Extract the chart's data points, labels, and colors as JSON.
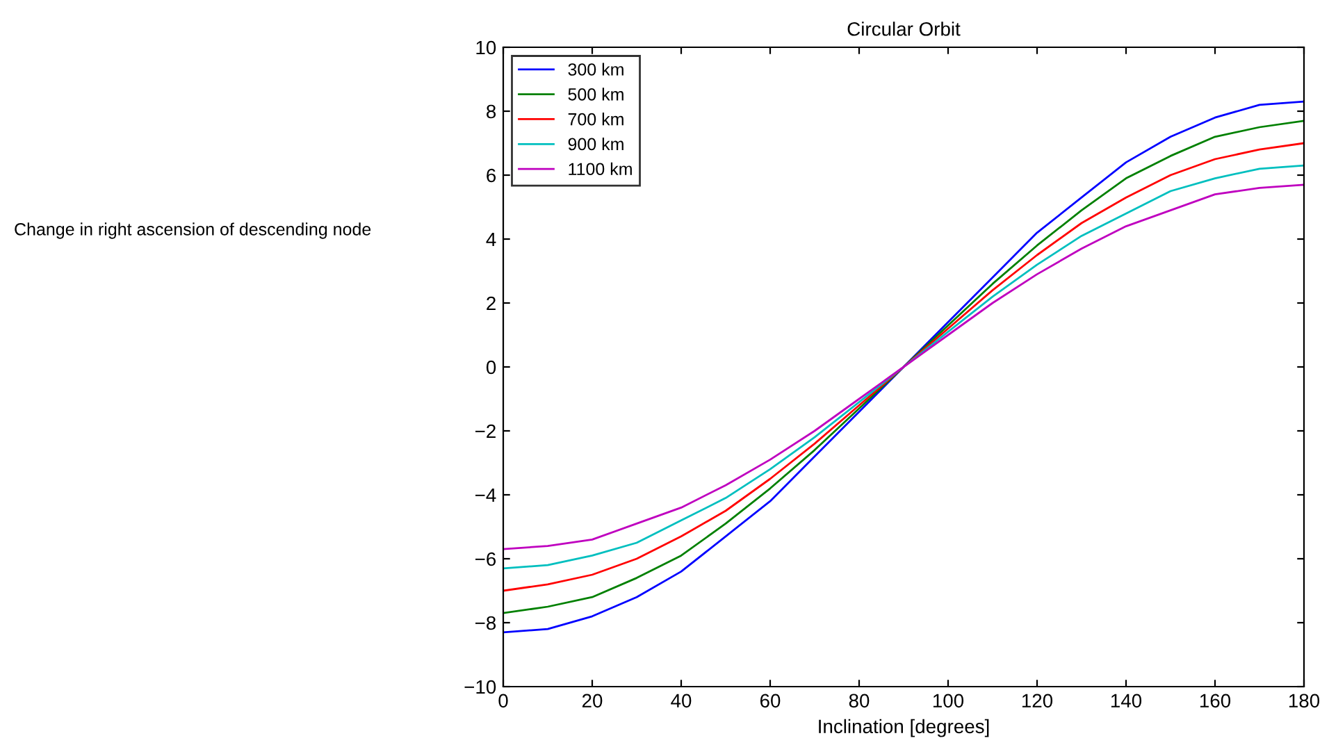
{
  "chart_data": {
    "type": "line",
    "title": "Circular Orbit",
    "xlabel": "Inclination [degrees]",
    "annotations": [
      "Change in right ascension of descending node"
    ],
    "x": [
      0,
      10,
      20,
      30,
      40,
      50,
      60,
      70,
      80,
      90,
      100,
      110,
      120,
      130,
      140,
      150,
      160,
      170,
      180
    ],
    "series": [
      {
        "name": "300 km",
        "color": "#0000ff",
        "values": [
          -8.3,
          -8.2,
          -7.8,
          -7.2,
          -6.4,
          -5.3,
          -4.2,
          -2.8,
          -1.4,
          0,
          1.4,
          2.8,
          4.2,
          5.3,
          6.4,
          7.2,
          7.8,
          8.2,
          8.3
        ]
      },
      {
        "name": "500 km",
        "color": "#008000",
        "values": [
          -7.7,
          -7.5,
          -7.2,
          -6.6,
          -5.9,
          -4.9,
          -3.8,
          -2.6,
          -1.3,
          0,
          1.3,
          2.6,
          3.8,
          4.9,
          5.9,
          6.6,
          7.2,
          7.5,
          7.7
        ]
      },
      {
        "name": "700 km",
        "color": "#ff0000",
        "values": [
          -7.0,
          -6.8,
          -6.5,
          -6.0,
          -5.3,
          -4.5,
          -3.5,
          -2.4,
          -1.2,
          0,
          1.2,
          2.4,
          3.5,
          4.5,
          5.3,
          6.0,
          6.5,
          6.8,
          7.0
        ]
      },
      {
        "name": "900 km",
        "color": "#00bfbf",
        "values": [
          -6.3,
          -6.2,
          -5.9,
          -5.5,
          -4.8,
          -4.1,
          -3.2,
          -2.2,
          -1.1,
          0,
          1.1,
          2.2,
          3.2,
          4.1,
          4.8,
          5.5,
          5.9,
          6.2,
          6.3
        ]
      },
      {
        "name": "1100 km",
        "color": "#bf00bf",
        "values": [
          -5.7,
          -5.6,
          -5.4,
          -4.9,
          -4.4,
          -3.7,
          -2.9,
          -2.0,
          -1.0,
          0,
          1.0,
          2.0,
          2.9,
          3.7,
          4.4,
          4.9,
          5.4,
          5.6,
          5.7
        ]
      }
    ],
    "xlim": [
      0,
      180
    ],
    "xticks": [
      0,
      20,
      40,
      60,
      80,
      100,
      120,
      140,
      160,
      180
    ],
    "ylim": [
      -10,
      10
    ],
    "yticks": [
      -10,
      -8,
      -6,
      -4,
      -2,
      0,
      2,
      4,
      6,
      8,
      10
    ],
    "legend": "top left",
    "grid": false
  }
}
